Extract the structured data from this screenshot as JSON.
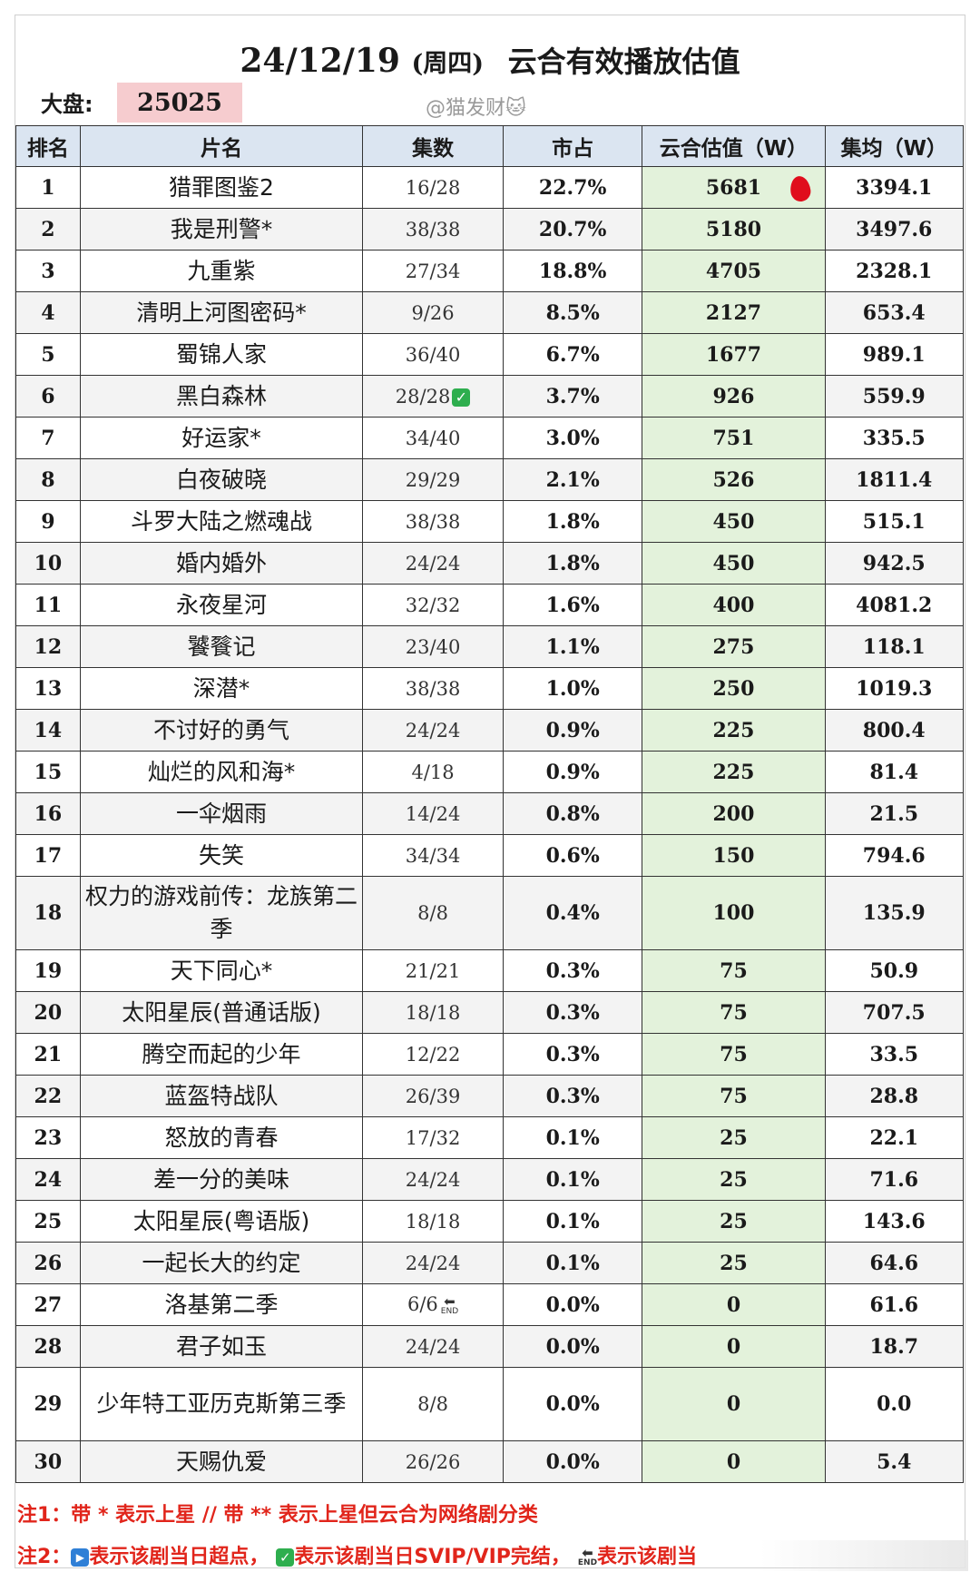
{
  "header": {
    "date": "24/12/19",
    "weekday": "(周四)",
    "title": "云合有效播放估值",
    "market_label": "大盘:",
    "market_value": "25025",
    "watermark": "@猫发财🐱"
  },
  "table": {
    "columns": [
      "排名",
      "片名",
      "集数",
      "市占",
      "云合估值（W）",
      "集均（W）"
    ],
    "rows": [
      {
        "rank": "1",
        "title": "猎罪图鉴2",
        "episodes": "16/28",
        "share": "22.7%",
        "estimate": "5681",
        "avg": "3394.1",
        "marker": "red-dot"
      },
      {
        "rank": "2",
        "title": "我是刑警*",
        "episodes": "38/38",
        "share": "20.7%",
        "estimate": "5180",
        "avg": "3497.6"
      },
      {
        "rank": "3",
        "title": "九重紫",
        "episodes": "27/34",
        "share": "18.8%",
        "estimate": "4705",
        "avg": "2328.1"
      },
      {
        "rank": "4",
        "title": "清明上河图密码*",
        "episodes": "9/26",
        "share": "8.5%",
        "estimate": "2127",
        "avg": "653.4"
      },
      {
        "rank": "5",
        "title": "蜀锦人家",
        "episodes": "36/40",
        "share": "6.7%",
        "estimate": "1677",
        "avg": "989.1"
      },
      {
        "rank": "6",
        "title": "黑白森林",
        "episodes": "28/28",
        "share": "3.7%",
        "estimate": "926",
        "avg": "559.9",
        "badge": "check"
      },
      {
        "rank": "7",
        "title": "好运家*",
        "episodes": "34/40",
        "share": "3.0%",
        "estimate": "751",
        "avg": "335.5"
      },
      {
        "rank": "8",
        "title": "白夜破晓",
        "episodes": "29/29",
        "share": "2.1%",
        "estimate": "526",
        "avg": "1811.4"
      },
      {
        "rank": "9",
        "title": "斗罗大陆之燃魂战",
        "episodes": "38/38",
        "share": "1.8%",
        "estimate": "450",
        "avg": "515.1"
      },
      {
        "rank": "10",
        "title": "婚内婚外",
        "episodes": "24/24",
        "share": "1.8%",
        "estimate": "450",
        "avg": "942.5"
      },
      {
        "rank": "11",
        "title": "永夜星河",
        "episodes": "32/32",
        "share": "1.6%",
        "estimate": "400",
        "avg": "4081.2"
      },
      {
        "rank": "12",
        "title": "饕餮记",
        "episodes": "23/40",
        "share": "1.1%",
        "estimate": "275",
        "avg": "118.1"
      },
      {
        "rank": "13",
        "title": "深潜*",
        "episodes": "38/38",
        "share": "1.0%",
        "estimate": "250",
        "avg": "1019.3"
      },
      {
        "rank": "14",
        "title": "不讨好的勇气",
        "episodes": "24/24",
        "share": "0.9%",
        "estimate": "225",
        "avg": "800.4"
      },
      {
        "rank": "15",
        "title": "灿烂的风和海*",
        "episodes": "4/18",
        "share": "0.9%",
        "estimate": "225",
        "avg": "81.4"
      },
      {
        "rank": "16",
        "title": "一伞烟雨",
        "episodes": "14/24",
        "share": "0.8%",
        "estimate": "200",
        "avg": "21.5"
      },
      {
        "rank": "17",
        "title": "失笑",
        "episodes": "34/34",
        "share": "0.6%",
        "estimate": "150",
        "avg": "794.6"
      },
      {
        "rank": "18",
        "title": "权力的游戏前传：龙族第二季",
        "episodes": "8/8",
        "share": "0.4%",
        "estimate": "100",
        "avg": "135.9",
        "tall": true
      },
      {
        "rank": "19",
        "title": "天下同心*",
        "episodes": "21/21",
        "share": "0.3%",
        "estimate": "75",
        "avg": "50.9"
      },
      {
        "rank": "20",
        "title": "太阳星辰(普通话版)",
        "episodes": "18/18",
        "share": "0.3%",
        "estimate": "75",
        "avg": "707.5"
      },
      {
        "rank": "21",
        "title": "腾空而起的少年",
        "episodes": "12/22",
        "share": "0.3%",
        "estimate": "75",
        "avg": "33.5"
      },
      {
        "rank": "22",
        "title": "蓝盔特战队",
        "episodes": "26/39",
        "share": "0.3%",
        "estimate": "75",
        "avg": "28.8"
      },
      {
        "rank": "23",
        "title": "怒放的青春",
        "episodes": "17/32",
        "share": "0.1%",
        "estimate": "25",
        "avg": "22.1"
      },
      {
        "rank": "24",
        "title": "差一分的美味",
        "episodes": "24/24",
        "share": "0.1%",
        "estimate": "25",
        "avg": "71.6"
      },
      {
        "rank": "25",
        "title": "太阳星辰(粤语版)",
        "episodes": "18/18",
        "share": "0.1%",
        "estimate": "25",
        "avg": "143.6"
      },
      {
        "rank": "26",
        "title": "一起长大的约定",
        "episodes": "24/24",
        "share": "0.1%",
        "estimate": "25",
        "avg": "64.6"
      },
      {
        "rank": "27",
        "title": "洛基第二季",
        "episodes": "6/6",
        "share": "0.0%",
        "estimate": "0",
        "avg": "61.6",
        "badge": "end"
      },
      {
        "rank": "28",
        "title": "君子如玉",
        "episodes": "24/24",
        "share": "0.0%",
        "estimate": "0",
        "avg": "18.7"
      },
      {
        "rank": "29",
        "title": "少年特工亚历克斯第三季",
        "episodes": "8/8",
        "share": "0.0%",
        "estimate": "0",
        "avg": "0.0",
        "tall": true
      },
      {
        "rank": "30",
        "title": "天赐仇爱",
        "episodes": "26/26",
        "share": "0.0%",
        "estimate": "0",
        "avg": "5.4"
      }
    ]
  },
  "notes": {
    "note1": "注1：带 * 表示上星 // 带 ** 表示上星但云合为网络剧分类",
    "note2_prefix": "注2：",
    "note2_part1": "表示该剧当日超点，",
    "note2_part2": "表示该剧当日SVIP/VIP完结，",
    "note2_part3": "表示该剧当",
    "end_label": "END"
  },
  "colors": {
    "header_fill": "#dbe5f1",
    "estimate_fill": "#e3f2db",
    "market_fill": "#f6cccf",
    "note_text": "#e1251b"
  }
}
